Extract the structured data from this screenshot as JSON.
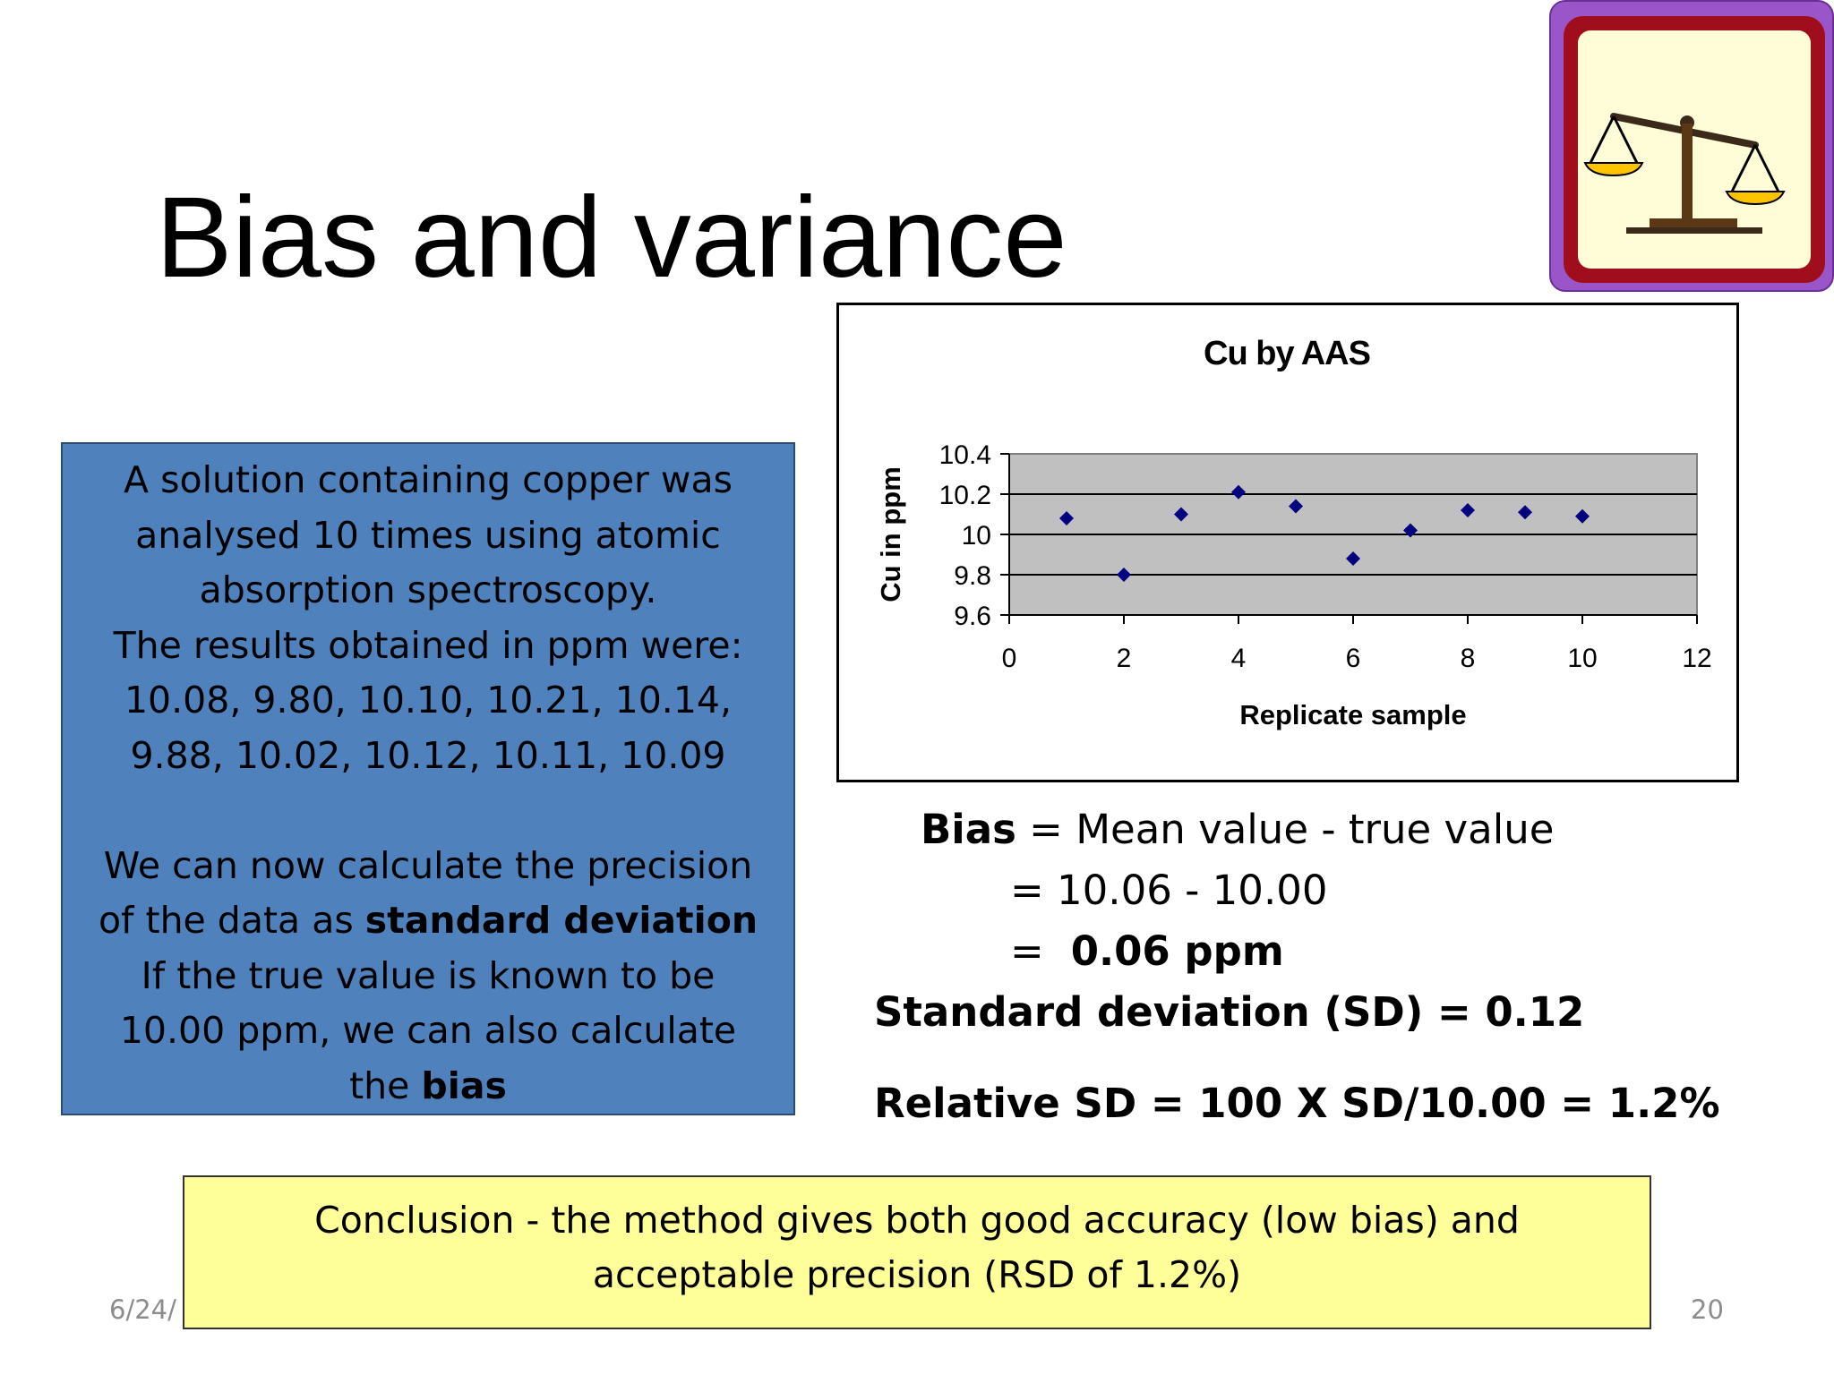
{
  "slide": {
    "title": "Bias and variance",
    "date_fragment": "6/24/",
    "page_number": "20"
  },
  "logo": {
    "icon": "balance-scale-icon"
  },
  "info": {
    "line1": "A solution containing copper was",
    "line2": "analysed 10 times using atomic",
    "line3": "absorption spectroscopy.",
    "line4": "The results obtained in ppm were:",
    "line5": "10.08, 9.80, 10.10, 10.21, 10.14,",
    "line6": "9.88, 10.02, 10.12, 10.11, 10.09",
    "line7": "We can now calculate the precision",
    "line8_pre": "of the data as ",
    "line8_bold": "standard deviation",
    "line9": "If the true value is known to be",
    "line10": "10.00 ppm, we can also calculate",
    "line11_pre": "the ",
    "line11_bold": "bias"
  },
  "formula": {
    "bias_label": "Bias",
    "bias_rest": " = Mean value - true value",
    "line2": "=  10.06 - 10.00",
    "line3_eq": "=",
    "line3_value": "0.06 ppm",
    "sd": "Standard deviation (SD) = 0.12",
    "rsd": "Relative SD = 100 X SD/10.00 = 1.2%"
  },
  "conclusion": {
    "line1": "Conclusion - the method gives both good accuracy (low bias) and",
    "line2": "acceptable precision (RSD of 1.2%)"
  },
  "chart_data": {
    "type": "scatter",
    "title": "Cu by AAS",
    "xlabel": "Replicate sample",
    "ylabel": "Cu in ppm",
    "xlim": [
      0,
      12
    ],
    "ylim": [
      9.6,
      10.4
    ],
    "xticks": [
      "0",
      "2",
      "4",
      "6",
      "8",
      "10",
      "12"
    ],
    "yticks": [
      "9.6",
      "9.8",
      "10",
      "10.2",
      "10.4"
    ],
    "grid": "horizontal",
    "plot_background": "#c0c0c0",
    "marker_color": "#000080",
    "marker": "diamond",
    "points": [
      {
        "x": 1,
        "y": 10.08
      },
      {
        "x": 2,
        "y": 9.8
      },
      {
        "x": 3,
        "y": 10.1
      },
      {
        "x": 4,
        "y": 10.21
      },
      {
        "x": 5,
        "y": 10.14
      },
      {
        "x": 6,
        "y": 9.88
      },
      {
        "x": 7,
        "y": 10.02
      },
      {
        "x": 8,
        "y": 10.12
      },
      {
        "x": 9,
        "y": 10.11
      },
      {
        "x": 10,
        "y": 10.09
      }
    ]
  }
}
